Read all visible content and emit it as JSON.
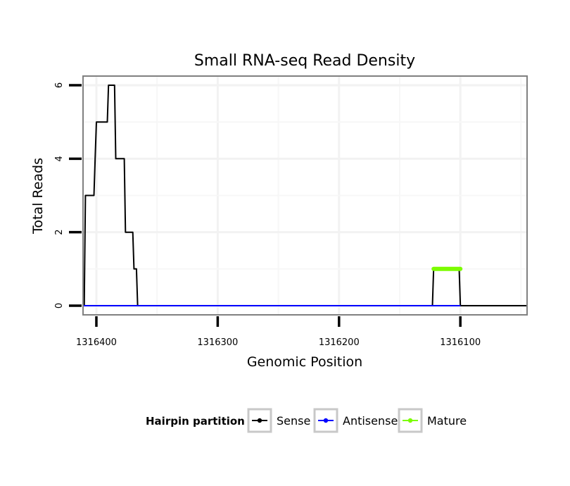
{
  "chart_data": {
    "type": "line",
    "title": "Small RNA-seq Read Density",
    "xlabel": "Genomic Position",
    "ylabel": "Total Reads",
    "x_reversed": true,
    "xlim": [
      1316411,
      1316045
    ],
    "ylim": [
      -0.25,
      6.25
    ],
    "x_ticks": [
      1316400,
      1316300,
      1316200,
      1316100
    ],
    "x_tick_labels": [
      "1316400",
      "1316300",
      "1316200",
      "1316100"
    ],
    "y_ticks": [
      0,
      2,
      4,
      6
    ],
    "y_tick_labels": [
      "0",
      "2",
      "4",
      "6"
    ],
    "grid": true,
    "legend": {
      "title": "Hairpin partition",
      "position": "bottom",
      "entries": [
        {
          "name": "Sense",
          "color": "#000000"
        },
        {
          "name": "Antisense",
          "color": "#0000ff"
        },
        {
          "name": "Mature",
          "color": "#7cfc00"
        }
      ]
    },
    "series": [
      {
        "name": "Sense",
        "color": "#000000",
        "step": true,
        "x": [
          1316411,
          1316410,
          1316409,
          1316402,
          1316401,
          1316400,
          1316391,
          1316390,
          1316385,
          1316384,
          1316377,
          1316376,
          1316370,
          1316369,
          1316367,
          1316366,
          1316365,
          1316123,
          1316122,
          1316101,
          1316100,
          1316045
        ],
        "values": [
          0,
          0,
          3,
          3,
          4,
          5,
          5,
          6,
          6,
          4,
          4,
          2,
          2,
          1,
          1,
          0,
          0,
          0,
          1,
          1,
          0,
          0
        ]
      },
      {
        "name": "Antisense",
        "color": "#0000ff",
        "x": [
          1316411,
          1316366,
          1316122,
          1316100
        ],
        "values": [
          0,
          0,
          0,
          0
        ]
      },
      {
        "name": "Mature",
        "color": "#7cfc00",
        "x": [
          1316122,
          1316100
        ],
        "values": [
          1,
          1
        ]
      }
    ]
  }
}
